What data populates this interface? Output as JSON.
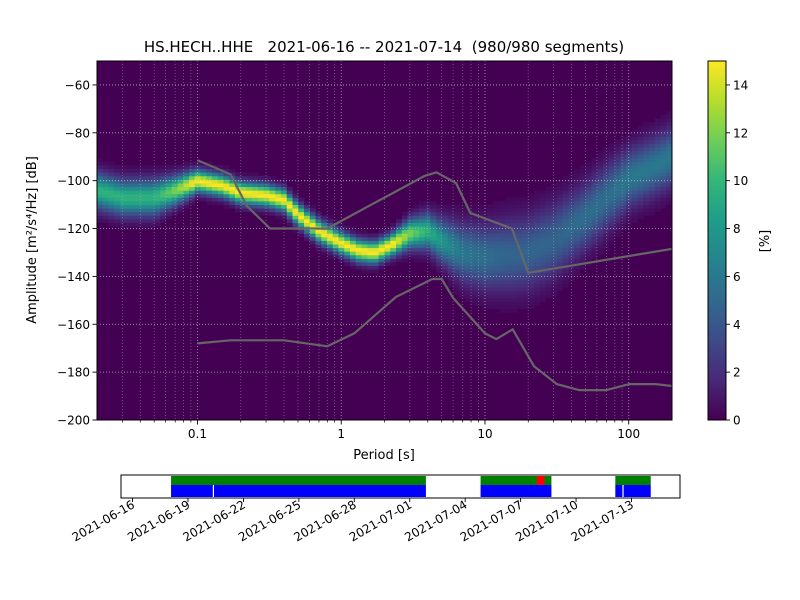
{
  "chart_data": [
    {
      "type": "heatmap",
      "title": "HS.HECH..HHE   2021-06-16 -- 2021-07-14  (980/980 segments)",
      "xlabel": "Period [s]",
      "ylabel": "Amplitude [m²/s⁴/Hz] [dB]",
      "xscale": "log",
      "xlim": [
        0.02,
        200
      ],
      "ylim": [
        -200,
        -50
      ],
      "xticks": [
        {
          "value": 0.1,
          "label": "0.1"
        },
        {
          "value": 1,
          "label": "1"
        },
        {
          "value": 10,
          "label": "10"
        },
        {
          "value": 100,
          "label": "100"
        }
      ],
      "yticks": [
        -200,
        -180,
        -160,
        -140,
        -120,
        -100,
        -80,
        -60
      ],
      "grid": true,
      "colorbar": {
        "label": "[%]",
        "range": [
          0,
          15
        ],
        "ticks": [
          0,
          2,
          4,
          6,
          8,
          10,
          12,
          14
        ],
        "colors": [
          "#440154",
          "#482878",
          "#3e4a89",
          "#31688e",
          "#26828e",
          "#1f9e89",
          "#35b779",
          "#6ece58",
          "#b5de2b",
          "#fde725"
        ]
      },
      "pdf_ridge": {
        "period": [
          0.02,
          0.03,
          0.05,
          0.07,
          0.1,
          0.15,
          0.2,
          0.3,
          0.4,
          0.5,
          0.7,
          1.0,
          1.3,
          1.7,
          2.2,
          3.0,
          4.0,
          5.0,
          7.0,
          10,
          15,
          20,
          30,
          50,
          70,
          100,
          150,
          200
        ],
        "amplitude": [
          -104,
          -107,
          -107,
          -104,
          -100,
          -102,
          -105,
          -106,
          -108,
          -114,
          -121,
          -126,
          -129,
          -130,
          -127,
          -122,
          -121,
          -125,
          -130,
          -132,
          -131,
          -130,
          -125,
          -115,
          -107,
          -99,
          -94,
          -90
        ],
        "width_db": [
          5,
          5,
          5,
          4,
          3,
          3,
          3,
          3,
          3,
          3,
          3,
          3,
          3,
          3,
          3,
          4,
          5,
          6,
          8,
          9,
          10,
          10,
          10,
          9,
          9,
          8,
          8,
          8
        ]
      },
      "noise_models": [
        {
          "model": "upper",
          "period": [
            0.1,
            0.17,
            0.22,
            0.32,
            0.8,
            3.8,
            4.6,
            6.3,
            7.9,
            15.4,
            20,
            354.8
          ],
          "amplitude": [
            -91.5,
            -97.4,
            -110.5,
            -120,
            -120,
            -98,
            -96.5,
            -101,
            -113.5,
            -120,
            -138.5,
            -126
          ]
        },
        {
          "model": "lower",
          "period": [
            0.1,
            0.17,
            0.4,
            0.8,
            1.24,
            2.4,
            4.3,
            5.0,
            6.0,
            10.0,
            12.0,
            15.6,
            21.9,
            31.6,
            45.0,
            70.0,
            101.0,
            154.0,
            200
          ],
          "amplitude": [
            -168,
            -166.7,
            -166.7,
            -169.2,
            -163.7,
            -148.6,
            -141.1,
            -141.1,
            -149,
            -163.8,
            -166.2,
            -162.1,
            -177.5,
            -185,
            -187.5,
            -187.5,
            -185,
            -185,
            -185.8
          ]
        }
      ]
    },
    {
      "type": "timeline",
      "dates": [
        "2021-06-16",
        "2021-06-19",
        "2021-06-22",
        "2021-06-25",
        "2021-06-28",
        "2021-07-01",
        "2021-07-04",
        "2021-07-07",
        "2021-07-10",
        "2021-07-13"
      ],
      "range": [
        "2021-06-15 09:00",
        "2021-07-15 15:00"
      ],
      "data_segments": [
        {
          "start": "2021-06-18 02:00",
          "end": "2021-07-01 21:00"
        },
        {
          "start": "2021-07-04 20:00",
          "end": "2021-07-08 16:00"
        },
        {
          "start": "2021-07-12 03:00",
          "end": "2021-07-14 01:00"
        }
      ],
      "used_segments": [
        {
          "start": "2021-06-18 02:00",
          "end": "2021-07-01 21:00"
        },
        {
          "start": "2021-07-04 20:00",
          "end": "2021-07-08 16:00"
        },
        {
          "start": "2021-07-12 03:00",
          "end": "2021-07-14 01:00"
        }
      ],
      "gap_markers": [
        "2021-06-20 09:00",
        "2021-07-12 13:00"
      ],
      "highlight_segments": [
        {
          "start": "2021-07-07 21:00",
          "end": "2021-07-08 07:00"
        }
      ],
      "colors": {
        "data": "#008000",
        "used": "#0000ff",
        "highlight": "#ff0000"
      }
    }
  ]
}
